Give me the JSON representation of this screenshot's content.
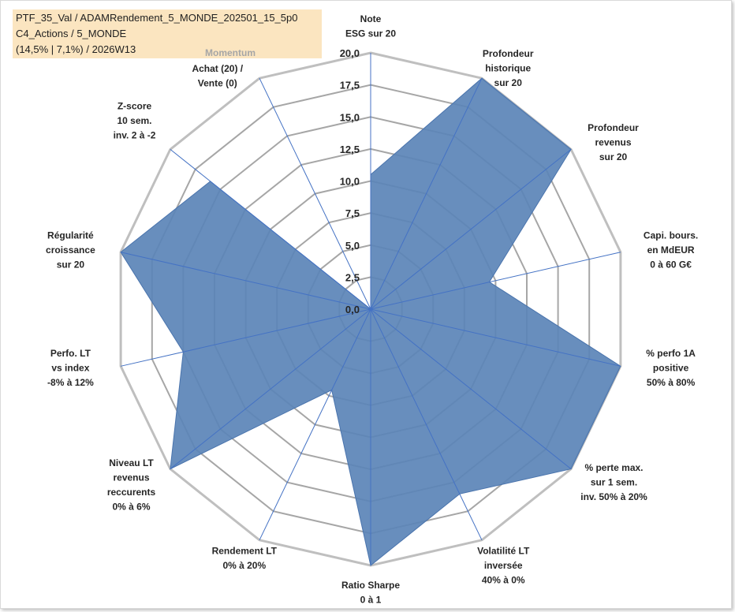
{
  "info_box": {
    "line1": "PTF_35_Val / ADAMRendement_5_MONDE_202501_15_5p0",
    "line2": "C4_Actions / 5_MONDE",
    "line3": "(14,5% | 7,1%) / 2026W13"
  },
  "momentum_label": "Momentum",
  "colors": {
    "fill": "#5b84b7",
    "stroke": "#4a74ad",
    "grid_outer": "#bfbfbf",
    "grid_inner": "#a6a6a6",
    "spoke": "#4472c4",
    "info_bg": "#fbe5c0"
  },
  "chart_data": {
    "type": "radar",
    "title": "",
    "rlim": [
      0,
      20
    ],
    "ticks": [
      "0,0",
      "2,5",
      "5,0",
      "7,5",
      "10,0",
      "12,5",
      "15,0",
      "17,5",
      "20,0"
    ],
    "grid": true,
    "categories": [
      [
        "Note",
        "ESG sur 20"
      ],
      [
        "Profondeur",
        "historique",
        "sur 20"
      ],
      [
        "Profondeur",
        "revenus",
        "sur 20"
      ],
      [
        "Capi. bours.",
        "en MdEUR",
        "0 à 60 G€"
      ],
      [
        "% perfo 1A",
        "positive",
        "50% à 80%"
      ],
      [
        "% perte max.",
        "sur 1 sem.",
        "inv. 50% à 20%"
      ],
      [
        "Volatilité LT",
        "inversée",
        "40% à 0%"
      ],
      [
        "Ratio Sharpe",
        "0 à 1"
      ],
      [
        "Rendement LT",
        "0% à 20%"
      ],
      [
        "Niveau LT",
        "revenus",
        "reccurents",
        "0% à 6%"
      ],
      [
        "Perfo. LT",
        "vs index",
        "-8% à 12%"
      ],
      [
        "Régularité",
        "croissance",
        "sur 20"
      ],
      [
        "Z-score",
        "10 sem.",
        "inv. 2 à -2"
      ],
      [
        "Achat (20) /",
        "Vente (0)"
      ]
    ],
    "values": [
      10.5,
      20,
      20,
      9.5,
      20,
      20,
      16,
      20,
      7,
      20,
      15,
      20,
      16,
      0
    ]
  }
}
